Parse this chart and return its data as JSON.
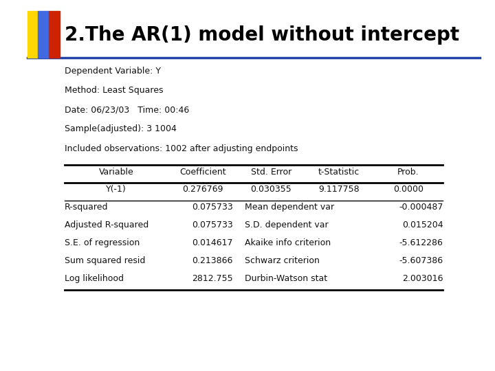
{
  "title": "2.The AR(1) model without intercept",
  "meta_lines": [
    "Dependent Variable: Y",
    "Method: Least Squares",
    "Date: 06/23/03   Time: 00:46",
    "Sample(adjusted): 3 1004",
    "Included observations: 1002 after adjusting endpoints"
  ],
  "table_headers": [
    "Variable",
    "Coefficient",
    "Std. Error",
    "t-Statistic",
    "Prob."
  ],
  "data_row": [
    "Y(-1)",
    "0.276769",
    "0.030355",
    "9.117758",
    "0.0000"
  ],
  "stats_rows": [
    [
      "R-squared",
      "0.075733",
      "Mean dependent var",
      "-0.000487"
    ],
    [
      "Adjusted R-squared",
      "0.075733",
      "S.D. dependent var",
      "0.015204"
    ],
    [
      "S.E. of regression",
      "0.014617",
      "Akaike info criterion",
      "-5.612286"
    ],
    [
      "Sum squared resid",
      "0.213866",
      "Schwarz criterion",
      "-5.607386"
    ],
    [
      "Log likelihood",
      "2812.755",
      "Durbin-Watson stat",
      "2.003016"
    ]
  ],
  "bg_color": "#ffffff",
  "title_color": "#000000",
  "title_fontsize": 20,
  "meta_fontsize": 9,
  "table_fontsize": 9,
  "bar_colors": [
    "#FFD700",
    "#4169E1",
    "#CC2200"
  ],
  "line_color": "#2244AA",
  "table_line_color": "#000000"
}
